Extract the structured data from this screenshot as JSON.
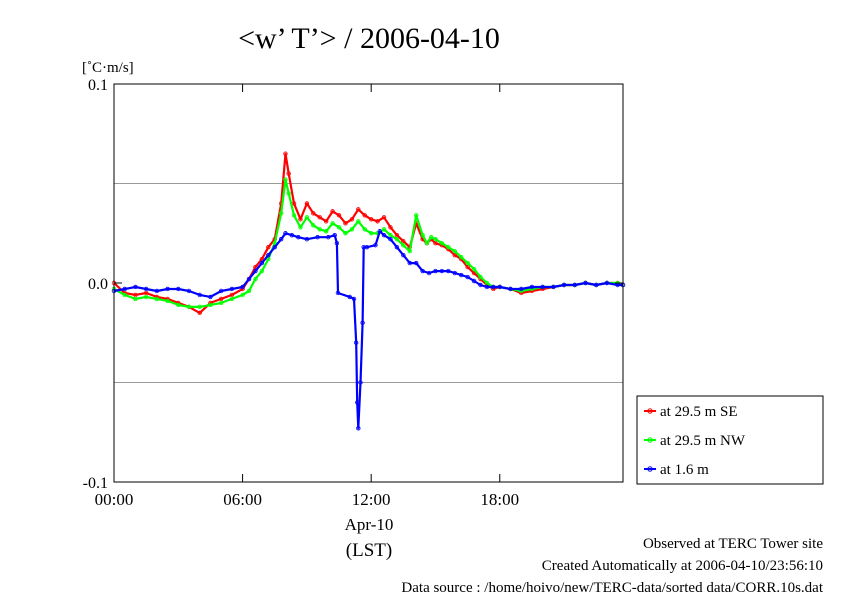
{
  "chart_data": {
    "type": "line",
    "title": "<w’ T’> / 2006-04-10",
    "ylabel": "[˚C·m/s]",
    "xlabel": "(LST)",
    "date_label": "Apr-10",
    "xlim": [
      0,
      23.75
    ],
    "ylim": [
      -0.1,
      0.1
    ],
    "y_ticks": [
      -0.1,
      0.0,
      0.1
    ],
    "y_tick_labels": [
      "-0.1",
      "0.0",
      "0.1"
    ],
    "y_gridlines": [
      -0.05,
      0.05
    ],
    "x_ticks": [
      0,
      6,
      12,
      18
    ],
    "x_tick_labels": [
      "00:00",
      "06:00",
      "12:00",
      "18:00"
    ],
    "legend_position": "right",
    "series": [
      {
        "name": "at 29.5 m SE",
        "color": "#ff0000",
        "x": [
          0,
          0.5,
          1,
          1.5,
          2,
          2.5,
          3,
          3.5,
          4,
          4.5,
          5,
          5.5,
          6,
          6.3,
          6.6,
          6.9,
          7.2,
          7.5,
          7.8,
          8.0,
          8.15,
          8.4,
          8.7,
          9.0,
          9.3,
          9.6,
          9.9,
          10.2,
          10.5,
          10.8,
          11.1,
          11.4,
          11.7,
          12.0,
          12.3,
          12.6,
          12.9,
          13.2,
          13.5,
          13.8,
          14.1,
          14.4,
          14.6,
          14.8,
          15.0,
          15.3,
          15.6,
          15.9,
          16.2,
          16.5,
          16.8,
          17.1,
          17.4,
          17.7,
          18.0,
          18.5,
          19.0,
          19.5,
          20.0,
          20.5,
          21,
          21.5,
          22,
          22.5,
          23,
          23.5,
          23.75
        ],
        "values": [
          0.0,
          -0.005,
          -0.006,
          -0.005,
          -0.007,
          -0.008,
          -0.01,
          -0.012,
          -0.015,
          -0.01,
          -0.008,
          -0.006,
          -0.003,
          0.002,
          0.008,
          0.012,
          0.018,
          0.022,
          0.04,
          0.065,
          0.055,
          0.04,
          0.032,
          0.04,
          0.035,
          0.033,
          0.031,
          0.036,
          0.034,
          0.03,
          0.032,
          0.037,
          0.034,
          0.032,
          0.031,
          0.033,
          0.028,
          0.024,
          0.021,
          0.018,
          0.03,
          0.022,
          0.02,
          0.022,
          0.02,
          0.019,
          0.017,
          0.014,
          0.012,
          0.008,
          0.005,
          0.002,
          -0.001,
          -0.003,
          -0.002,
          -0.003,
          -0.005,
          -0.004,
          -0.003,
          -0.002,
          -0.001,
          -0.001,
          0.0,
          -0.001,
          0.0,
          0.0,
          -0.001
        ]
      },
      {
        "name": "at 29.5 m NW",
        "color": "#00ff00",
        "x": [
          0,
          0.5,
          1,
          1.5,
          2,
          2.5,
          3,
          3.5,
          4,
          4.5,
          5,
          5.5,
          6,
          6.3,
          6.6,
          6.9,
          7.2,
          7.5,
          7.8,
          8.0,
          8.15,
          8.4,
          8.7,
          9.0,
          9.3,
          9.6,
          9.9,
          10.2,
          10.5,
          10.8,
          11.1,
          11.4,
          11.7,
          12.0,
          12.3,
          12.6,
          12.9,
          13.2,
          13.5,
          13.8,
          14.1,
          14.4,
          14.6,
          14.8,
          15.0,
          15.3,
          15.6,
          15.9,
          16.2,
          16.5,
          16.8,
          17.1,
          17.4,
          17.7,
          18.0,
          18.5,
          19.0,
          19.5,
          20.0,
          20.5,
          21,
          21.5,
          22,
          22.5,
          23,
          23.5,
          23.75
        ],
        "values": [
          -0.003,
          -0.006,
          -0.008,
          -0.007,
          -0.008,
          -0.009,
          -0.011,
          -0.012,
          -0.012,
          -0.011,
          -0.01,
          -0.008,
          -0.006,
          -0.004,
          0.002,
          0.006,
          0.012,
          0.02,
          0.035,
          0.052,
          0.045,
          0.034,
          0.028,
          0.033,
          0.029,
          0.027,
          0.026,
          0.03,
          0.028,
          0.025,
          0.027,
          0.031,
          0.027,
          0.025,
          0.025,
          0.027,
          0.024,
          0.022,
          0.019,
          0.016,
          0.034,
          0.024,
          0.02,
          0.023,
          0.022,
          0.02,
          0.018,
          0.016,
          0.013,
          0.01,
          0.007,
          0.003,
          0.0,
          -0.002,
          -0.002,
          -0.003,
          -0.004,
          -0.003,
          -0.002,
          -0.002,
          -0.001,
          -0.001,
          0.0,
          -0.001,
          0.0,
          0.0,
          -0.001
        ]
      },
      {
        "name": "at 1.6 m",
        "color": "#0000ff",
        "x": [
          0,
          0.5,
          1,
          1.5,
          2,
          2.5,
          3,
          3.5,
          4,
          4.5,
          5,
          5.5,
          6,
          6.3,
          6.6,
          6.9,
          7.2,
          7.5,
          7.8,
          8.0,
          8.3,
          8.6,
          9.0,
          9.5,
          10.0,
          10.3,
          10.4,
          10.45,
          11.0,
          11.2,
          11.3,
          11.35,
          11.4,
          11.5,
          11.6,
          11.65,
          11.8,
          12.2,
          12.4,
          12.6,
          12.9,
          13.2,
          13.5,
          13.8,
          14.1,
          14.4,
          14.7,
          15.0,
          15.3,
          15.6,
          15.9,
          16.2,
          16.5,
          16.8,
          17.1,
          17.4,
          17.7,
          18.0,
          18.5,
          19.0,
          19.5,
          20.0,
          20.5,
          21,
          21.5,
          22,
          22.5,
          23,
          23.5,
          23.75
        ],
        "values": [
          -0.004,
          -0.003,
          -0.002,
          -0.003,
          -0.004,
          -0.003,
          -0.003,
          -0.004,
          -0.006,
          -0.007,
          -0.004,
          -0.003,
          -0.002,
          0.002,
          0.006,
          0.01,
          0.014,
          0.018,
          0.022,
          0.025,
          0.024,
          0.023,
          0.022,
          0.023,
          0.023,
          0.024,
          0.02,
          -0.005,
          -0.007,
          -0.008,
          -0.03,
          -0.06,
          -0.073,
          -0.05,
          -0.02,
          0.018,
          0.018,
          0.019,
          0.026,
          0.024,
          0.022,
          0.018,
          0.014,
          0.01,
          0.01,
          0.006,
          0.005,
          0.006,
          0.006,
          0.006,
          0.005,
          0.004,
          0.003,
          0.001,
          -0.001,
          -0.002,
          -0.002,
          -0.002,
          -0.003,
          -0.003,
          -0.002,
          -0.002,
          -0.002,
          -0.001,
          -0.001,
          0.0,
          -0.001,
          0.0,
          -0.001,
          -0.001
        ]
      }
    ]
  },
  "footer": {
    "line1": "Observed at TERC Tower site",
    "line2": "Created Automatically at 2006-04-10/23:56:10",
    "line3": "Data source : /home/hoivo/new/TERC-data/sorted  data/CORR.10s.dat"
  }
}
